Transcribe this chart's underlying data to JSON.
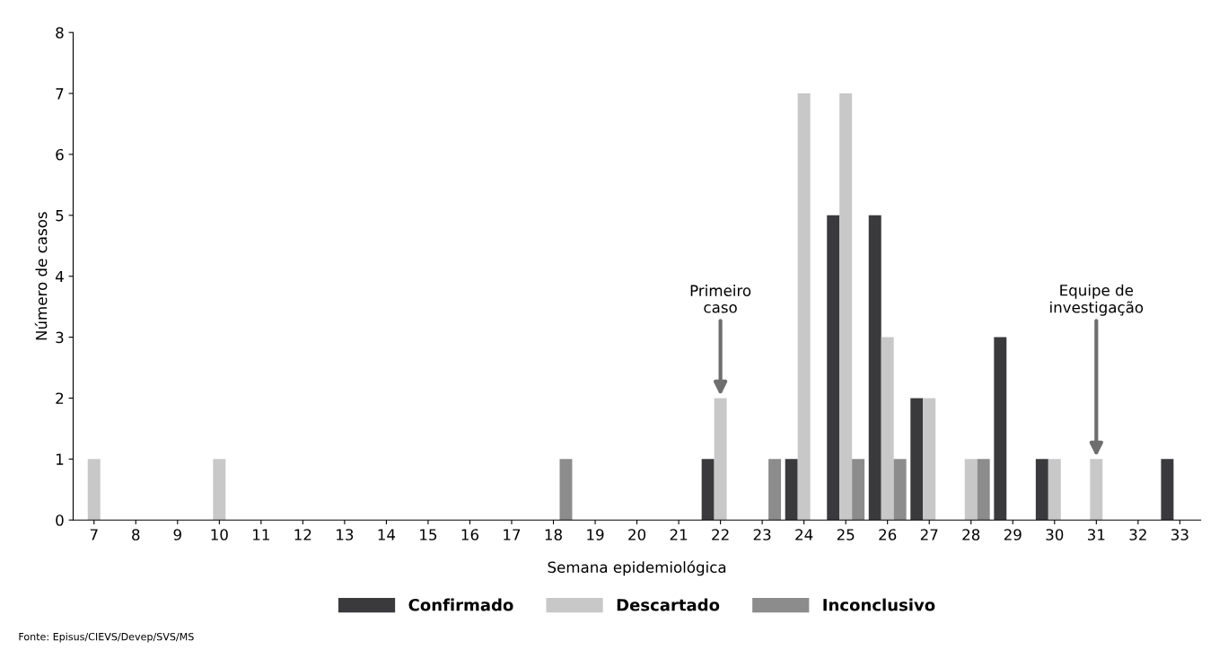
{
  "chart_data": {
    "type": "bar",
    "xlabel": "Semana epidemiológica",
    "ylabel": "Número de casos",
    "categories": [
      "7",
      "8",
      "9",
      "10",
      "11",
      "12",
      "13",
      "14",
      "15",
      "16",
      "17",
      "18",
      "19",
      "20",
      "21",
      "22",
      "23",
      "24",
      "25",
      "26",
      "27",
      "28",
      "29",
      "30",
      "31",
      "32",
      "33"
    ],
    "series": [
      {
        "name": "Confirmado",
        "color": "#3a3a3c",
        "values": [
          0,
          0,
          0,
          0,
          0,
          0,
          0,
          0,
          0,
          0,
          0,
          0,
          0,
          0,
          0,
          1,
          0,
          1,
          5,
          5,
          2,
          0,
          3,
          1,
          0,
          0,
          1
        ]
      },
      {
        "name": "Descartado",
        "color": "#c8c8c8",
        "values": [
          1,
          0,
          0,
          1,
          0,
          0,
          0,
          0,
          0,
          0,
          0,
          0,
          0,
          0,
          0,
          2,
          0,
          7,
          7,
          3,
          2,
          1,
          0,
          1,
          1,
          0,
          0
        ]
      },
      {
        "name": "Inconclusivo",
        "color": "#8c8c8c",
        "values": [
          0,
          0,
          0,
          0,
          0,
          0,
          0,
          0,
          0,
          0,
          0,
          1,
          0,
          0,
          0,
          0,
          1,
          0,
          1,
          1,
          0,
          1,
          0,
          0,
          0,
          0,
          0
        ]
      }
    ],
    "ylim": [
      0,
      8
    ],
    "yticks": [
      0,
      1,
      2,
      3,
      4,
      5,
      6,
      7,
      8
    ],
    "grid": false,
    "legend": "bottom",
    "annotations": [
      {
        "text": "Primeiro\ncaso",
        "x": "22",
        "y": 2
      },
      {
        "text": "Equipe de\ninvestigação",
        "x": "31",
        "y": 1
      },
      "Fonte: Episus/CIEVS/Devep/SVS/MS"
    ]
  }
}
